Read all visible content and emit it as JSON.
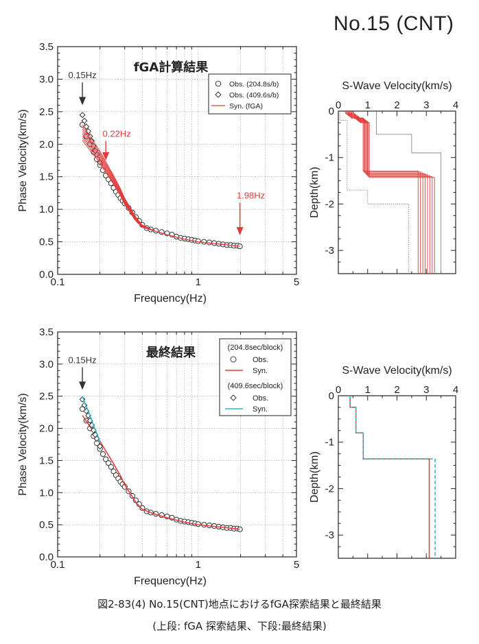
{
  "page_title": "No.15 (CNT)",
  "caption_main": "図2-83(4) No.15(CNT)地点におけるfGA探索結果と最終結果",
  "caption_sub": "(上段: fGA 探索結果、下段:最終結果)",
  "colors": {
    "observed": "#333333",
    "syn_red": "#e23b3b",
    "syn_cyan": "#2bb6c9",
    "grid": "#9a9a9a",
    "initial": "#777777"
  },
  "chart_data": [
    {
      "type": "scatter",
      "title": "fGA計算結果",
      "xlabel": "Frequency(Hz)",
      "ylabel": "Phase Velocity(km/s)",
      "x_scale": "log",
      "xlim": [
        0.1,
        5
      ],
      "ylim": [
        0.0,
        3.5
      ],
      "xticks": [
        "0.1",
        "1",
        "5"
      ],
      "yticks": [
        "0.0",
        "0.5",
        "1.0",
        "1.5",
        "2.0",
        "2.5",
        "3.0",
        "3.5"
      ],
      "grid": true,
      "legend": {
        "position": "top-right",
        "header": "",
        "entries": [
          "Obs. (204.8s/b)",
          "Obs. (409.6s/b)",
          "Syn. (fGA)"
        ]
      },
      "annotations": [
        {
          "text": "0.15Hz",
          "x": 0.15,
          "color": "#333333",
          "y_from": 2.95,
          "y_to": 2.6
        },
        {
          "text": "0.22Hz",
          "x": 0.22,
          "color": "#e23b3b",
          "y_from": 2.05,
          "y_to": 1.75
        },
        {
          "text": "1.98Hz",
          "x": 1.98,
          "color": "#e23b3b",
          "y_from": 1.1,
          "y_to": 0.6
        }
      ],
      "series": [
        {
          "name": "Obs. (204.8s/b)",
          "marker": "circle",
          "x": [
            0.15,
            0.16,
            0.17,
            0.18,
            0.19,
            0.2,
            0.21,
            0.22,
            0.23,
            0.24,
            0.25,
            0.26,
            0.27,
            0.28,
            0.29,
            0.3,
            0.32,
            0.34,
            0.36,
            0.38,
            0.4,
            0.43,
            0.46,
            0.5,
            0.55,
            0.6,
            0.65,
            0.7,
            0.75,
            0.8,
            0.85,
            0.9,
            0.95,
            1.0,
            1.1,
            1.2,
            1.3,
            1.4,
            1.5,
            1.6,
            1.7,
            1.8,
            1.9,
            1.98
          ],
          "y": [
            2.3,
            2.12,
            2.0,
            1.88,
            1.77,
            1.68,
            1.6,
            1.52,
            1.46,
            1.4,
            1.33,
            1.27,
            1.22,
            1.17,
            1.13,
            1.09,
            1.02,
            0.95,
            0.88,
            0.82,
            0.76,
            0.71,
            0.69,
            0.67,
            0.65,
            0.63,
            0.61,
            0.58,
            0.56,
            0.55,
            0.54,
            0.53,
            0.52,
            0.51,
            0.5,
            0.49,
            0.48,
            0.47,
            0.46,
            0.45,
            0.45,
            0.44,
            0.44,
            0.43
          ]
        },
        {
          "name": "Obs. (409.6s/b)",
          "marker": "diamond",
          "x": [
            0.15,
            0.155,
            0.16,
            0.165,
            0.17,
            0.175,
            0.18,
            0.185,
            0.19,
            0.2
          ],
          "y": [
            2.45,
            2.36,
            2.27,
            2.2,
            2.12,
            2.05,
            1.97,
            1.9,
            1.84,
            1.72
          ]
        },
        {
          "name": "Syn. (fGA)",
          "type": "line",
          "count": 8,
          "x": [
            0.15,
            0.18,
            0.2,
            0.22,
            0.25,
            0.28,
            0.3,
            0.33,
            0.36,
            0.4,
            0.5,
            0.6,
            0.8,
            1.0,
            1.5,
            1.98
          ],
          "y": [
            2.18,
            1.94,
            1.8,
            1.65,
            1.45,
            1.26,
            1.12,
            0.98,
            0.85,
            0.74,
            0.66,
            0.61,
            0.54,
            0.5,
            0.46,
            0.43
          ]
        }
      ]
    },
    {
      "type": "line",
      "title": "",
      "xlabel": "S-Wave Velocity(km/s)",
      "ylabel": "Depth(km)",
      "xlim": [
        0,
        4
      ],
      "ylim": [
        -3.5,
        0
      ],
      "xticks": [
        "0",
        "1",
        "2",
        "3",
        "4"
      ],
      "yticks": [
        "0",
        "-1",
        "-2",
        "-3"
      ],
      "series": [
        {
          "name": "fGA models",
          "color": "#e23b3b",
          "count": 8,
          "vs": [
            0.35,
            0.65,
            0.95,
            3.0
          ],
          "interfaces": [
            0.1,
            0.2,
            1.36
          ],
          "base_vs": 3.0
        },
        {
          "name": "search bounds",
          "color": "#777777",
          "style": "dotted",
          "lower": {
            "vs": [
              0.05,
              0.3,
              1.0,
              2.4
            ],
            "interfaces": [
              0.2,
              1.7,
              2.0
            ]
          },
          "upper": {
            "vs": [
              1.3,
              2.5,
              3.5
            ],
            "interfaces": [
              0.5,
              0.9
            ]
          }
        }
      ]
    },
    {
      "type": "scatter",
      "title": "最終結果",
      "xlabel": "Frequency(Hz)",
      "ylabel": "Phase Velocity(km/s)",
      "x_scale": "log",
      "xlim": [
        0.1,
        5
      ],
      "ylim": [
        0.0,
        3.5
      ],
      "xticks": [
        "0.1",
        "1",
        "5"
      ],
      "yticks": [
        "0.0",
        "0.5",
        "1.0",
        "1.5",
        "2.0",
        "2.5",
        "3.0",
        "3.5"
      ],
      "grid": true,
      "legend": {
        "position": "top-right",
        "groups": [
          {
            "header": "(204.8sec/block)",
            "entries": [
              "Obs.",
              "Syn."
            ]
          },
          {
            "header": "(409.6sec/block)",
            "entries": [
              "Obs.",
              "Syn."
            ]
          }
        ]
      },
      "annotations": [
        {
          "text": "0.15Hz",
          "x": 0.15,
          "color": "#333333",
          "y_from": 2.95,
          "y_to": 2.6
        }
      ],
      "series": [
        {
          "name": "Obs.",
          "marker": "circle",
          "x": [
            0.15,
            0.16,
            0.17,
            0.18,
            0.19,
            0.2,
            0.21,
            0.22,
            0.23,
            0.24,
            0.25,
            0.26,
            0.27,
            0.28,
            0.29,
            0.3,
            0.32,
            0.34,
            0.36,
            0.38,
            0.4,
            0.43,
            0.46,
            0.5,
            0.55,
            0.6,
            0.65,
            0.7,
            0.75,
            0.8,
            0.85,
            0.9,
            0.95,
            1.0,
            1.1,
            1.2,
            1.3,
            1.4,
            1.5,
            1.6,
            1.7,
            1.8,
            1.9,
            1.98
          ],
          "y": [
            2.3,
            2.12,
            2.0,
            1.88,
            1.77,
            1.68,
            1.6,
            1.52,
            1.46,
            1.4,
            1.33,
            1.27,
            1.22,
            1.17,
            1.13,
            1.09,
            1.02,
            0.95,
            0.88,
            0.82,
            0.76,
            0.71,
            0.69,
            0.67,
            0.65,
            0.63,
            0.61,
            0.58,
            0.56,
            0.55,
            0.54,
            0.53,
            0.52,
            0.51,
            0.5,
            0.49,
            0.48,
            0.47,
            0.46,
            0.45,
            0.45,
            0.44,
            0.44,
            0.43
          ]
        },
        {
          "name": "Syn.",
          "type": "line",
          "color": "#e23b3b",
          "x": [
            0.15,
            0.18,
            0.2,
            0.22,
            0.25,
            0.28,
            0.3,
            0.33,
            0.36,
            0.4,
            0.5,
            0.6,
            0.8,
            1.0,
            1.5,
            1.98
          ],
          "y": [
            2.2,
            1.95,
            1.8,
            1.65,
            1.45,
            1.26,
            1.12,
            0.98,
            0.85,
            0.74,
            0.66,
            0.61,
            0.54,
            0.5,
            0.46,
            0.43
          ]
        },
        {
          "name": "Obs.",
          "marker": "diamond",
          "x": [
            0.15,
            0.155,
            0.16,
            0.165,
            0.17,
            0.175,
            0.18,
            0.185,
            0.19,
            0.2
          ],
          "y": [
            2.45,
            2.36,
            2.27,
            2.2,
            2.12,
            2.05,
            1.97,
            1.9,
            1.84,
            1.72
          ]
        },
        {
          "name": "Syn.",
          "type": "line",
          "color": "#2bb6c9",
          "x": [
            0.15,
            0.16,
            0.17,
            0.18,
            0.19,
            0.2
          ],
          "y": [
            2.5,
            2.34,
            2.2,
            2.05,
            1.92,
            1.8
          ]
        }
      ]
    },
    {
      "type": "line",
      "title": "",
      "xlabel": "S-Wave Velocity(km/s)",
      "ylabel": "Depth(km)",
      "xlim": [
        0,
        4
      ],
      "ylim": [
        -3.5,
        0
      ],
      "xticks": [
        "0",
        "1",
        "2",
        "3",
        "4"
      ],
      "yticks": [
        "0",
        "-1",
        "-2",
        "-3"
      ],
      "series": [
        {
          "name": "final model",
          "color": "#e23b3b",
          "vs": [
            0.4,
            0.6,
            0.85,
            3.1
          ],
          "interfaces": [
            0.25,
            0.8,
            1.36
          ]
        },
        {
          "name": "final model alt",
          "color": "#2bb6c9",
          "style": "dashed",
          "vs": [
            0.4,
            0.6,
            0.85,
            3.3
          ],
          "interfaces": [
            0.25,
            0.8,
            1.36
          ]
        }
      ]
    }
  ]
}
